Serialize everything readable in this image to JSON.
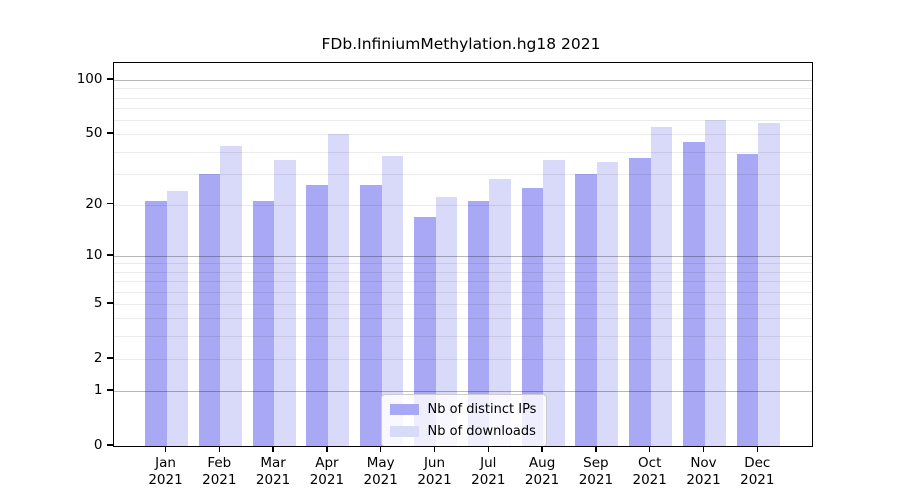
{
  "figure": {
    "title": "FDb.InfiniumMethylation.hg18 2021"
  },
  "chart_data": {
    "type": "bar",
    "title": "FDb.InfiniumMethylation.hg18 2021",
    "categories": [
      "Jan 2021",
      "Feb 2021",
      "Mar 2021",
      "Apr 2021",
      "May 2021",
      "Jun 2021",
      "Jul 2021",
      "Aug 2021",
      "Sep 2021",
      "Oct 2021",
      "Nov 2021",
      "Dec 2021"
    ],
    "x_tick_months": [
      "Jan",
      "Feb",
      "Mar",
      "Apr",
      "May",
      "Jun",
      "Jul",
      "Aug",
      "Sep",
      "Oct",
      "Nov",
      "Dec"
    ],
    "x_tick_year": "2021",
    "series": [
      {
        "name": "Nb of distinct IPs",
        "color": "#a8a8f4",
        "values": [
          21,
          30,
          21,
          26,
          26,
          17,
          21,
          25,
          30,
          37,
          45,
          39
        ]
      },
      {
        "name": "Nb of downloads",
        "color": "#d9d9f9",
        "values": [
          24,
          43,
          36,
          50,
          38,
          22,
          28,
          36,
          35,
          55,
          60,
          58
        ]
      }
    ],
    "y_axis": {
      "scale": "log1p",
      "tick_values": [
        100,
        50,
        20,
        10,
        5,
        2,
        1,
        0
      ],
      "major_gridlines": [
        1,
        10,
        100
      ],
      "minor_gridlines": [
        2,
        3,
        4,
        5,
        6,
        7,
        8,
        9,
        20,
        30,
        40,
        50,
        60,
        70,
        80,
        90
      ],
      "ylim": [
        0,
        125
      ]
    },
    "grid": true,
    "legend_position": "lower center"
  },
  "colors": {
    "bar_ips": "#a8a8f4",
    "bar_downloads": "#d9d9f9",
    "grid_major": "rgba(0,0,0,0.28)",
    "grid_minor": "rgba(0,0,0,0.08)",
    "axis": "#000000",
    "legend_border": "#cccccc",
    "legend_bg": "rgba(255,255,255,0.8)"
  }
}
